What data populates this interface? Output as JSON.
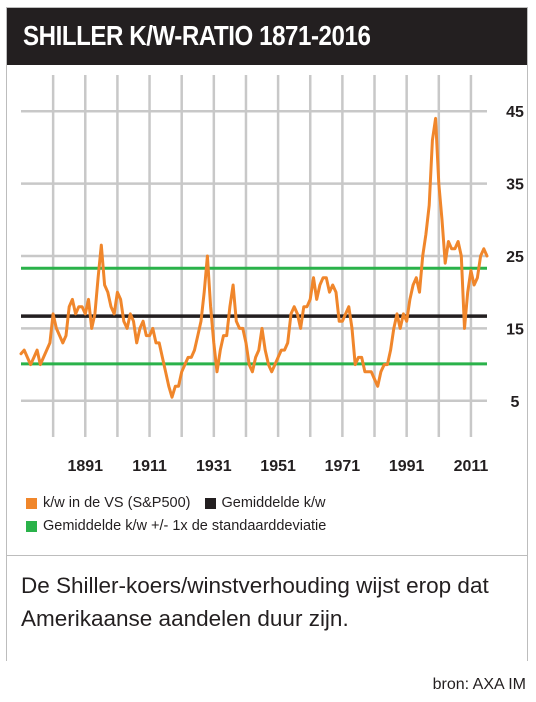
{
  "header": {
    "title": "SHILLER K/W-RATIO 1871-2016"
  },
  "chart_data": {
    "type": "line",
    "title": "SHILLER K/W-RATIO 1871-2016",
    "xlabel": "",
    "ylabel": "",
    "x_ticks": [
      "1891",
      "1911",
      "1931",
      "1951",
      "1971",
      "1991",
      "2011"
    ],
    "y_ticks": [
      "5",
      "15",
      "25",
      "35",
      "45"
    ],
    "ylim": [
      0,
      50
    ],
    "xlim": [
      1871,
      2016
    ],
    "grid": true,
    "legend_position": "bottom",
    "colors": {
      "series": "#f0862b",
      "mean": "#231f20",
      "band": "#2ab24a",
      "grid": "#c8c8c8"
    },
    "series": [
      {
        "name": "k/w in de VS (S&P500)",
        "points": [
          [
            1871,
            11.5
          ],
          [
            1872,
            12
          ],
          [
            1873,
            11
          ],
          [
            1874,
            10
          ],
          [
            1875,
            11
          ],
          [
            1876,
            12
          ],
          [
            1877,
            10
          ],
          [
            1878,
            11
          ],
          [
            1879,
            12
          ],
          [
            1880,
            13
          ],
          [
            1881,
            17
          ],
          [
            1882,
            15
          ],
          [
            1883,
            14
          ],
          [
            1884,
            13
          ],
          [
            1885,
            14
          ],
          [
            1886,
            18
          ],
          [
            1887,
            19
          ],
          [
            1888,
            17
          ],
          [
            1889,
            18
          ],
          [
            1890,
            18
          ],
          [
            1891,
            17
          ],
          [
            1892,
            19
          ],
          [
            1893,
            15
          ],
          [
            1894,
            17
          ],
          [
            1895,
            22
          ],
          [
            1896,
            26.5
          ],
          [
            1897,
            21
          ],
          [
            1898,
            20
          ],
          [
            1899,
            18
          ],
          [
            1900,
            17
          ],
          [
            1901,
            20
          ],
          [
            1902,
            19
          ],
          [
            1903,
            16
          ],
          [
            1904,
            15
          ],
          [
            1905,
            17
          ],
          [
            1906,
            16
          ],
          [
            1907,
            13
          ],
          [
            1908,
            15
          ],
          [
            1909,
            16
          ],
          [
            1910,
            14
          ],
          [
            1911,
            14
          ],
          [
            1912,
            15
          ],
          [
            1913,
            13
          ],
          [
            1914,
            13
          ],
          [
            1915,
            11
          ],
          [
            1916,
            9
          ],
          [
            1917,
            7
          ],
          [
            1918,
            5.5
          ],
          [
            1919,
            7
          ],
          [
            1920,
            7
          ],
          [
            1921,
            9
          ],
          [
            1922,
            10
          ],
          [
            1923,
            11
          ],
          [
            1924,
            11
          ],
          [
            1925,
            12
          ],
          [
            1926,
            14
          ],
          [
            1927,
            16
          ],
          [
            1928,
            20
          ],
          [
            1929,
            25
          ],
          [
            1930,
            18
          ],
          [
            1931,
            13
          ],
          [
            1932,
            9
          ],
          [
            1933,
            12
          ],
          [
            1934,
            14
          ],
          [
            1935,
            14
          ],
          [
            1936,
            18
          ],
          [
            1937,
            21
          ],
          [
            1938,
            16
          ],
          [
            1939,
            15
          ],
          [
            1940,
            15
          ],
          [
            1941,
            13
          ],
          [
            1942,
            10
          ],
          [
            1943,
            9
          ],
          [
            1944,
            11
          ],
          [
            1945,
            12
          ],
          [
            1946,
            15
          ],
          [
            1947,
            12
          ],
          [
            1948,
            10
          ],
          [
            1949,
            9
          ],
          [
            1950,
            10
          ],
          [
            1951,
            11
          ],
          [
            1952,
            12
          ],
          [
            1953,
            12
          ],
          [
            1954,
            13
          ],
          [
            1955,
            17
          ],
          [
            1956,
            18
          ],
          [
            1957,
            17
          ],
          [
            1958,
            15
          ],
          [
            1959,
            18
          ],
          [
            1960,
            18
          ],
          [
            1961,
            19
          ],
          [
            1962,
            22
          ],
          [
            1963,
            19
          ],
          [
            1964,
            21
          ],
          [
            1965,
            22
          ],
          [
            1966,
            22
          ],
          [
            1967,
            20
          ],
          [
            1968,
            21
          ],
          [
            1969,
            20
          ],
          [
            1970,
            16
          ],
          [
            1971,
            16
          ],
          [
            1972,
            17
          ],
          [
            1973,
            18
          ],
          [
            1974,
            15
          ],
          [
            1975,
            10
          ],
          [
            1976,
            11
          ],
          [
            1977,
            11
          ],
          [
            1978,
            9
          ],
          [
            1979,
            9
          ],
          [
            1980,
            9
          ],
          [
            1981,
            8
          ],
          [
            1982,
            7
          ],
          [
            1983,
            9
          ],
          [
            1984,
            10
          ],
          [
            1985,
            10
          ],
          [
            1986,
            12
          ],
          [
            1987,
            15
          ],
          [
            1988,
            17
          ],
          [
            1989,
            15
          ],
          [
            1990,
            17
          ],
          [
            1991,
            16
          ],
          [
            1992,
            19
          ],
          [
            1993,
            21
          ],
          [
            1994,
            22
          ],
          [
            1995,
            20
          ],
          [
            1996,
            25
          ],
          [
            1997,
            28
          ],
          [
            1998,
            32
          ],
          [
            1999,
            41
          ],
          [
            2000,
            44
          ],
          [
            2001,
            35
          ],
          [
            2002,
            30
          ],
          [
            2003,
            24
          ],
          [
            2004,
            27
          ],
          [
            2005,
            26
          ],
          [
            2006,
            26
          ],
          [
            2007,
            27
          ],
          [
            2008,
            25
          ],
          [
            2009,
            15
          ],
          [
            2010,
            20
          ],
          [
            2011,
            23
          ],
          [
            2012,
            21
          ],
          [
            2013,
            22
          ],
          [
            2014,
            25
          ],
          [
            2015,
            26
          ],
          [
            2016,
            25
          ]
        ]
      },
      {
        "name": "Gemiddelde k/w",
        "value": 16.7
      },
      {
        "name": "Gemiddelde k/w +/- 1x de standaarddeviatie",
        "values": [
          10.1,
          23.3
        ]
      }
    ]
  },
  "legend": [
    {
      "label": "k/w in de VS (S&P500)",
      "color": "#f0862b"
    },
    {
      "label": "Gemiddelde k/w",
      "color": "#231f20"
    },
    {
      "label": "Gemiddelde k/w +/- 1x de standaarddeviatie",
      "color": "#2ab24a"
    }
  ],
  "caption": "De Shiller-koers/winstverhouding wijst erop dat Amerikaanse aandelen duur zijn.",
  "source": "bron: AXA IM"
}
